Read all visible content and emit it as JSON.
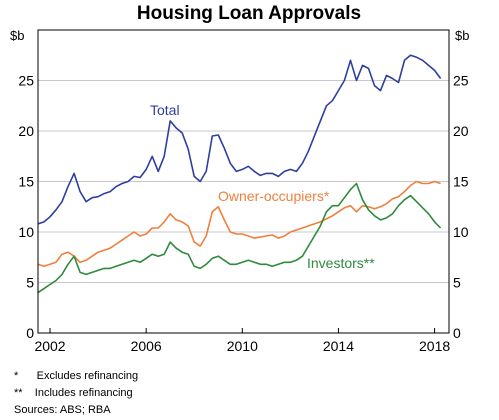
{
  "chart_data": {
    "type": "line",
    "title": "Housing Loan Approvals",
    "ylabel_left": "$b",
    "ylabel_right": "$b",
    "xlabel": "",
    "xlim": [
      2001.5,
      2018.6
    ],
    "ylim": [
      0,
      30
    ],
    "x_ticks": [
      "2002",
      "2006",
      "2010",
      "2014",
      "2018"
    ],
    "y_ticks": [
      "0",
      "5",
      "10",
      "15",
      "20",
      "25"
    ],
    "grid": true,
    "colors": {
      "Total": "#2e3f9e",
      "Owner-occupiers*": "#f07f3c",
      "Investors**": "#2f8a3c"
    },
    "series": [
      {
        "name": "Total",
        "label_text": "Total",
        "x": [
          2001.5,
          2001.75,
          2002.0,
          2002.25,
          2002.5,
          2002.75,
          2003.0,
          2003.25,
          2003.5,
          2003.75,
          2004.0,
          2004.25,
          2004.5,
          2004.75,
          2005.0,
          2005.25,
          2005.5,
          2005.75,
          2006.0,
          2006.25,
          2006.5,
          2006.75,
          2007.0,
          2007.25,
          2007.5,
          2007.75,
          2008.0,
          2008.25,
          2008.5,
          2008.75,
          2009.0,
          2009.25,
          2009.5,
          2009.75,
          2010.0,
          2010.25,
          2010.5,
          2010.75,
          2011.0,
          2011.25,
          2011.5,
          2011.75,
          2012.0,
          2012.25,
          2012.5,
          2012.75,
          2013.0,
          2013.25,
          2013.5,
          2013.75,
          2014.0,
          2014.25,
          2014.5,
          2014.75,
          2015.0,
          2015.25,
          2015.5,
          2015.75,
          2016.0,
          2016.25,
          2016.5,
          2016.75,
          2017.0,
          2017.25,
          2017.5,
          2017.75,
          2018.0,
          2018.25
        ],
        "values": [
          10.8,
          11.0,
          11.5,
          12.2,
          13.0,
          14.5,
          15.8,
          14.0,
          13.0,
          13.4,
          13.5,
          13.8,
          14.0,
          14.5,
          14.8,
          15.0,
          15.5,
          15.4,
          16.2,
          17.5,
          16.0,
          17.5,
          21.0,
          20.3,
          19.8,
          18.2,
          15.5,
          15.0,
          16.0,
          19.5,
          19.6,
          18.3,
          16.8,
          16.0,
          16.2,
          16.5,
          16.0,
          15.6,
          15.8,
          15.8,
          15.5,
          16.0,
          16.2,
          16.0,
          16.8,
          18.0,
          19.5,
          21.0,
          22.5,
          23.0,
          24.0,
          25.0,
          27.0,
          25.0,
          26.5,
          26.2,
          24.5,
          24.0,
          25.5,
          25.2,
          24.8,
          27.0,
          27.5,
          27.3,
          27.0,
          26.5,
          26.0,
          25.2
        ]
      },
      {
        "name": "Owner-occupiers*",
        "label_text": "Owner-occupiers*",
        "x": [
          2001.5,
          2001.75,
          2002.0,
          2002.25,
          2002.5,
          2002.75,
          2003.0,
          2003.25,
          2003.5,
          2003.75,
          2004.0,
          2004.25,
          2004.5,
          2004.75,
          2005.0,
          2005.25,
          2005.5,
          2005.75,
          2006.0,
          2006.25,
          2006.5,
          2006.75,
          2007.0,
          2007.25,
          2007.5,
          2007.75,
          2008.0,
          2008.25,
          2008.5,
          2008.75,
          2009.0,
          2009.25,
          2009.5,
          2009.75,
          2010.0,
          2010.25,
          2010.5,
          2010.75,
          2011.0,
          2011.25,
          2011.5,
          2011.75,
          2012.0,
          2012.25,
          2012.5,
          2012.75,
          2013.0,
          2013.25,
          2013.5,
          2013.75,
          2014.0,
          2014.25,
          2014.5,
          2014.75,
          2015.0,
          2015.25,
          2015.5,
          2015.75,
          2016.0,
          2016.25,
          2016.5,
          2016.75,
          2017.0,
          2017.25,
          2017.5,
          2017.75,
          2018.0,
          2018.25
        ],
        "values": [
          6.8,
          6.6,
          6.8,
          7.0,
          7.8,
          8.0,
          7.6,
          7.0,
          7.2,
          7.6,
          8.0,
          8.2,
          8.4,
          8.8,
          9.2,
          9.6,
          10.0,
          9.6,
          9.8,
          10.4,
          10.4,
          11.0,
          11.8,
          11.2,
          11.0,
          10.6,
          9.0,
          8.6,
          9.6,
          12.0,
          12.5,
          11.2,
          10.0,
          9.8,
          9.8,
          9.6,
          9.4,
          9.5,
          9.6,
          9.7,
          9.4,
          9.6,
          10.0,
          10.2,
          10.4,
          10.6,
          10.8,
          11.0,
          11.3,
          11.6,
          12.0,
          12.4,
          12.6,
          12.0,
          12.6,
          12.5,
          12.3,
          12.5,
          12.8,
          13.3,
          13.5,
          14.0,
          14.6,
          15.0,
          14.8,
          14.8,
          15.0,
          14.8
        ]
      },
      {
        "name": "Investors**",
        "label_text": "Investors**",
        "x": [
          2001.5,
          2001.75,
          2002.0,
          2002.25,
          2002.5,
          2002.75,
          2003.0,
          2003.25,
          2003.5,
          2003.75,
          2004.0,
          2004.25,
          2004.5,
          2004.75,
          2005.0,
          2005.25,
          2005.5,
          2005.75,
          2006.0,
          2006.25,
          2006.5,
          2006.75,
          2007.0,
          2007.25,
          2007.5,
          2007.75,
          2008.0,
          2008.25,
          2008.5,
          2008.75,
          2009.0,
          2009.25,
          2009.5,
          2009.75,
          2010.0,
          2010.25,
          2010.5,
          2010.75,
          2011.0,
          2011.25,
          2011.5,
          2011.75,
          2012.0,
          2012.25,
          2012.5,
          2012.75,
          2013.0,
          2013.25,
          2013.5,
          2013.75,
          2014.0,
          2014.25,
          2014.5,
          2014.75,
          2015.0,
          2015.25,
          2015.5,
          2015.75,
          2016.0,
          2016.25,
          2016.5,
          2016.75,
          2017.0,
          2017.25,
          2017.5,
          2017.75,
          2018.0,
          2018.25
        ],
        "values": [
          4.0,
          4.4,
          4.8,
          5.2,
          5.8,
          6.8,
          7.6,
          6.0,
          5.8,
          6.0,
          6.2,
          6.4,
          6.4,
          6.6,
          6.8,
          7.0,
          7.2,
          7.0,
          7.4,
          7.8,
          7.6,
          7.8,
          9.0,
          8.4,
          8.0,
          7.8,
          6.6,
          6.4,
          6.8,
          7.4,
          7.6,
          7.2,
          6.8,
          6.8,
          7.0,
          7.2,
          7.0,
          6.8,
          6.8,
          6.6,
          6.8,
          7.0,
          7.0,
          7.2,
          7.6,
          8.6,
          9.6,
          10.6,
          12.0,
          12.6,
          12.6,
          13.4,
          14.2,
          14.8,
          13.2,
          12.2,
          11.6,
          11.2,
          11.4,
          11.8,
          12.6,
          13.2,
          13.6,
          13.0,
          12.4,
          11.8,
          11.0,
          10.4
        ]
      }
    ],
    "annotations": {
      "footnote_1": "*      Excludes refinancing",
      "footnote_2": "**    Includes refinancing",
      "sources": "Sources: ABS; RBA"
    }
  }
}
